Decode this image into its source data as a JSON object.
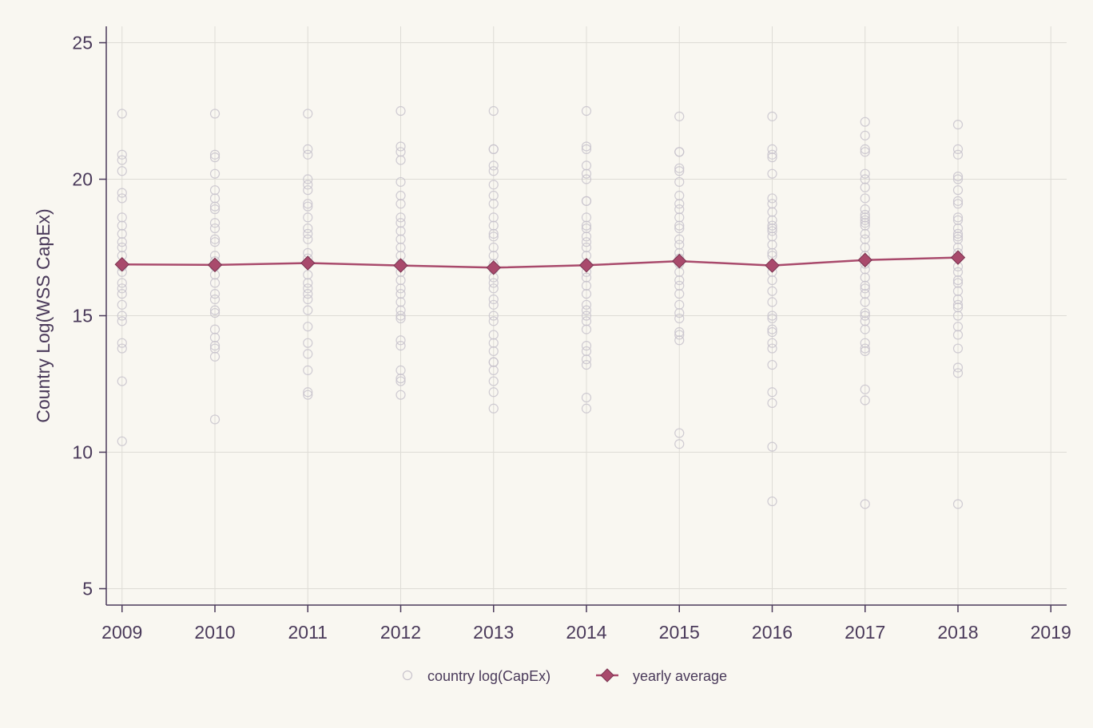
{
  "chart_data": {
    "type": "scatter",
    "title": "",
    "xlabel": "",
    "ylabel": "Country Log(WSS CapEx)",
    "xlim": [
      2008.83,
      2019.17
    ],
    "ylim": [
      4.4,
      25.6
    ],
    "x_ticks": [
      "2009",
      "2010",
      "2011",
      "2012",
      "2013",
      "2014",
      "2015",
      "2016",
      "2017",
      "2018",
      "2019"
    ],
    "y_ticks": [
      "5",
      "10",
      "15",
      "20",
      "25"
    ],
    "grid": true,
    "legend_position": "bottom",
    "colors": {
      "background": "#f9f7f1",
      "grid": "#dedcd6",
      "axis": "#4a3a5a",
      "scatter": "#c8c3cc",
      "average": "#a94a6c"
    },
    "series": [
      {
        "name": "country log(CapEx)",
        "type": "scatter",
        "points": {
          "2009": [
            22.4,
            20.9,
            20.7,
            20.3,
            19.5,
            19.3,
            18.6,
            18.3,
            18.0,
            17.7,
            17.5,
            17.2,
            16.8,
            16.6,
            16.2,
            16.0,
            15.8,
            15.4,
            15.0,
            14.8,
            14.0,
            13.8,
            12.6,
            10.4
          ],
          "2010": [
            22.4,
            20.9,
            20.8,
            20.2,
            19.6,
            19.3,
            19.0,
            18.9,
            18.4,
            18.2,
            17.8,
            17.7,
            17.2,
            17.0,
            16.8,
            16.5,
            16.2,
            15.8,
            15.6,
            15.2,
            15.1,
            14.5,
            14.2,
            13.9,
            13.8,
            13.5,
            11.2
          ],
          "2011": [
            22.4,
            21.1,
            20.9,
            20.0,
            19.8,
            19.6,
            19.1,
            19.0,
            18.6,
            18.2,
            18.0,
            17.8,
            17.3,
            17.1,
            16.9,
            16.5,
            16.2,
            16.0,
            15.8,
            15.6,
            15.2,
            14.6,
            14.0,
            13.6,
            13.0,
            12.2,
            12.1
          ],
          "2012": [
            22.5,
            21.2,
            21.0,
            20.7,
            19.9,
            19.4,
            19.1,
            18.6,
            18.4,
            18.1,
            17.8,
            17.5,
            17.2,
            16.9,
            16.6,
            16.3,
            16.0,
            15.8,
            15.5,
            15.2,
            15.0,
            14.9,
            14.1,
            13.9,
            13.0,
            12.7,
            12.6,
            12.1
          ],
          "2013": [
            22.5,
            21.1,
            21.1,
            20.5,
            20.3,
            19.8,
            19.4,
            19.1,
            18.6,
            18.3,
            18.0,
            17.9,
            17.5,
            17.2,
            16.9,
            16.7,
            16.4,
            16.2,
            16.0,
            15.6,
            15.4,
            15.0,
            14.8,
            14.3,
            14.0,
            13.7,
            13.3,
            13.3,
            13.0,
            12.6,
            12.2,
            11.6
          ],
          "2014": [
            22.5,
            21.2,
            21.1,
            20.5,
            20.2,
            20.0,
            19.2,
            19.2,
            18.6,
            18.3,
            18.2,
            17.9,
            17.7,
            17.5,
            17.2,
            16.9,
            16.6,
            16.4,
            16.1,
            15.8,
            15.4,
            15.2,
            15.0,
            14.8,
            14.5,
            13.9,
            13.7,
            13.4,
            13.2,
            12.0,
            11.6
          ],
          "2015": [
            22.3,
            21.0,
            21.0,
            20.4,
            20.3,
            19.9,
            19.4,
            19.1,
            18.9,
            18.6,
            18.3,
            18.2,
            17.8,
            17.6,
            17.3,
            17.1,
            16.9,
            16.6,
            16.3,
            16.1,
            15.8,
            15.4,
            15.1,
            14.9,
            14.4,
            14.3,
            14.1,
            10.7,
            10.3
          ],
          "2016": [
            22.3,
            21.1,
            20.9,
            20.8,
            20.2,
            19.3,
            19.1,
            18.8,
            18.5,
            18.3,
            18.2,
            18.1,
            17.9,
            17.6,
            17.3,
            17.2,
            16.8,
            16.6,
            16.3,
            15.9,
            15.5,
            15.0,
            14.9,
            14.5,
            14.4,
            14.0,
            13.8,
            13.2,
            12.2,
            11.8,
            10.2,
            8.2
          ],
          "2017": [
            22.1,
            21.6,
            21.1,
            21.0,
            20.2,
            20.0,
            19.7,
            19.3,
            18.9,
            18.7,
            18.6,
            18.5,
            18.4,
            18.3,
            18.0,
            17.8,
            17.5,
            17.2,
            16.9,
            16.7,
            16.4,
            16.1,
            16.0,
            15.8,
            15.5,
            15.1,
            15.0,
            14.8,
            14.5,
            14.0,
            13.8,
            13.7,
            12.3,
            11.9,
            8.1
          ],
          "2018": [
            22.0,
            21.1,
            20.9,
            20.1,
            20.0,
            19.6,
            19.2,
            19.1,
            18.6,
            18.5,
            18.2,
            18.0,
            17.9,
            17.8,
            17.5,
            17.3,
            16.8,
            16.6,
            16.3,
            16.2,
            15.9,
            15.6,
            15.4,
            15.3,
            15.0,
            14.6,
            14.3,
            13.8,
            13.1,
            12.9,
            8.1
          ]
        }
      },
      {
        "name": "yearly average",
        "type": "line",
        "x": [
          2009,
          2010,
          2011,
          2012,
          2013,
          2014,
          2015,
          2016,
          2017,
          2018
        ],
        "values": [
          16.88,
          16.86,
          16.93,
          16.84,
          16.76,
          16.85,
          17.0,
          16.84,
          17.04,
          17.13
        ]
      }
    ],
    "legend": [
      "country log(CapEx)",
      "yearly average"
    ]
  }
}
